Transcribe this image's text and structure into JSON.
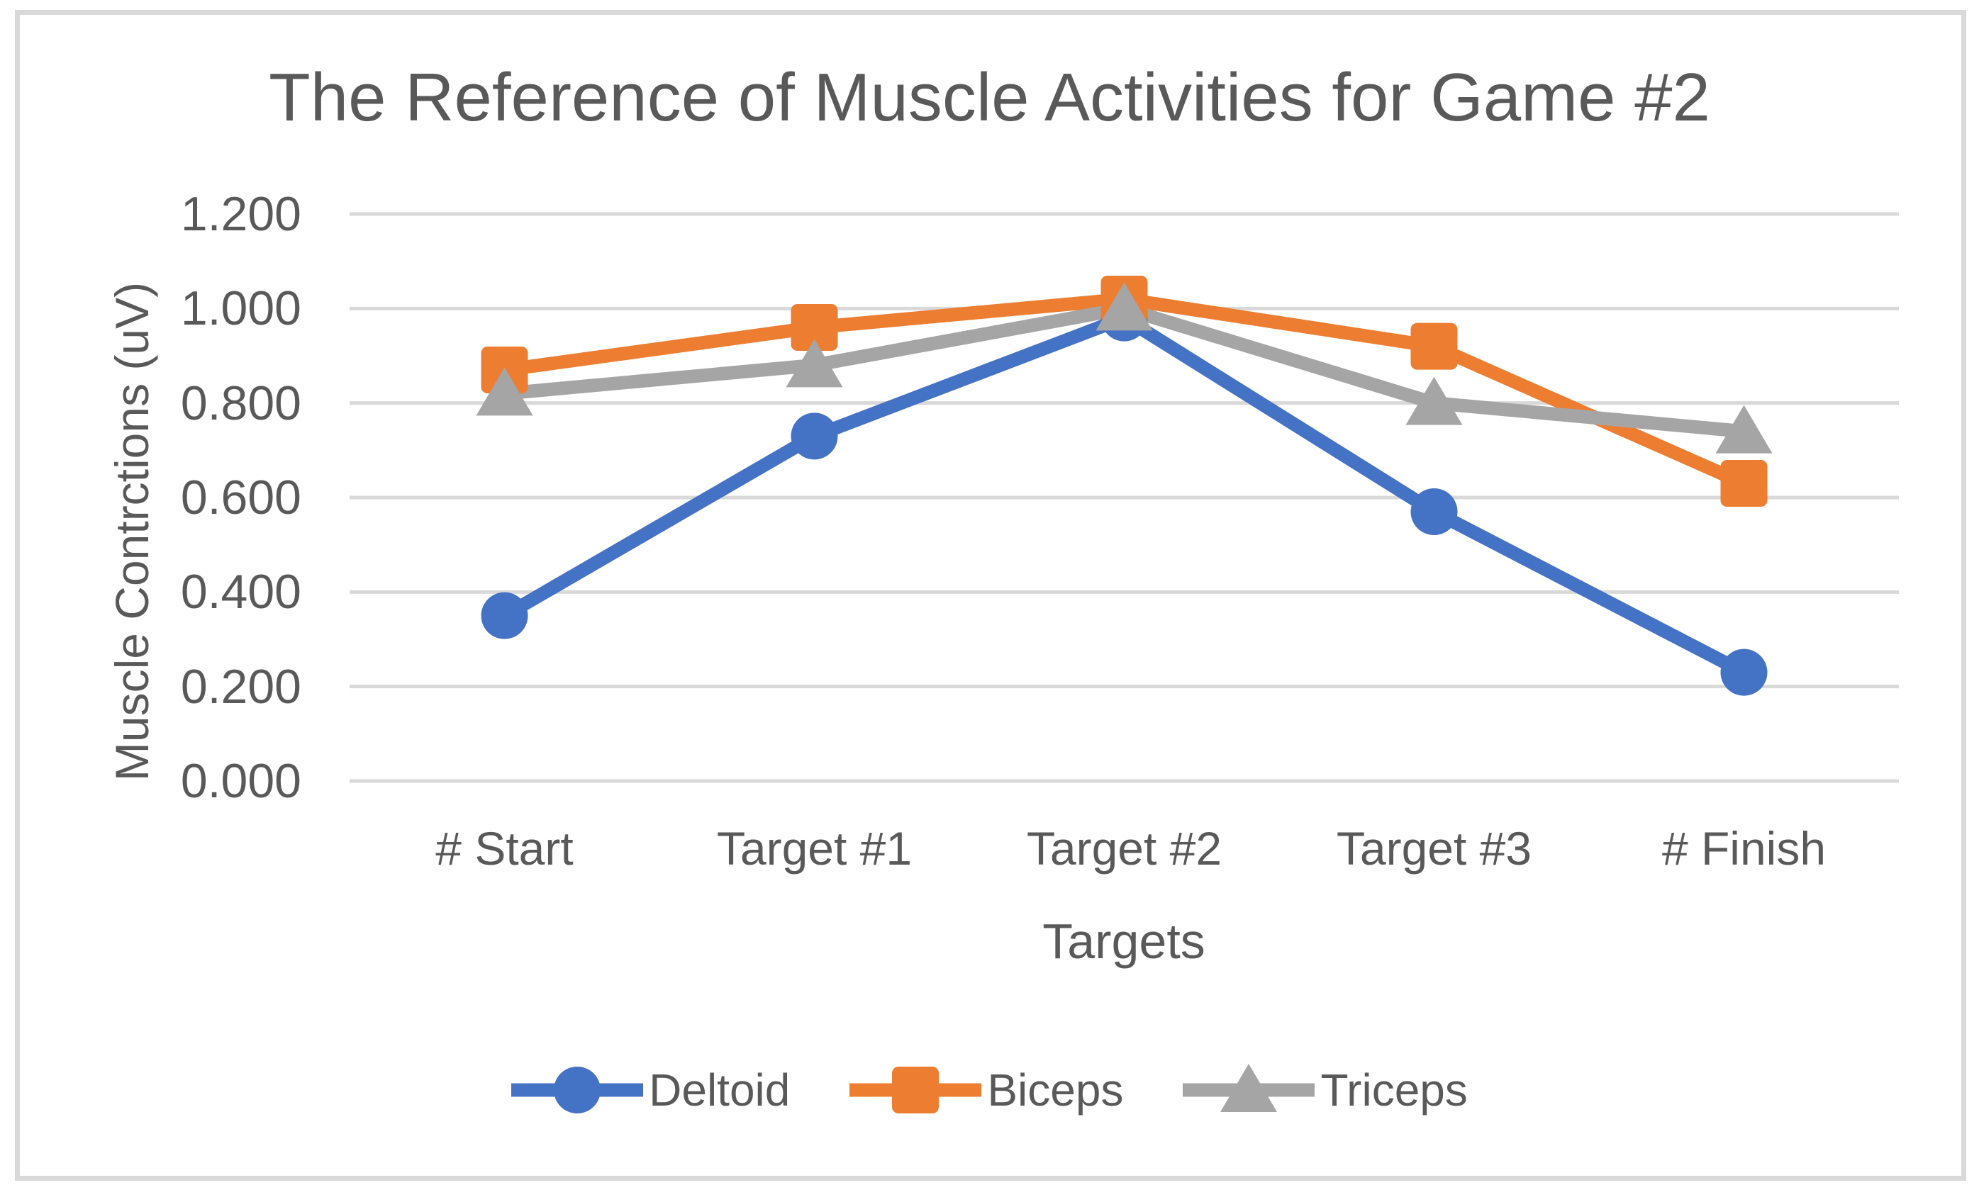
{
  "chart_data": {
    "type": "line",
    "title": "The Reference of Muscle Activities for Game #2",
    "xlabel": "Targets",
    "ylabel": "Muscle Contrctions (uV)",
    "categories": [
      "# Start",
      "Target #1",
      "Target #2",
      "Target #3",
      "# Finish"
    ],
    "series": [
      {
        "name": "Deltoid",
        "marker": "circle",
        "color": "#4472C4",
        "values": [
          0.35,
          0.73,
          0.98,
          0.57,
          0.23
        ]
      },
      {
        "name": "Biceps",
        "marker": "square",
        "color": "#ED7D31",
        "values": [
          0.87,
          0.96,
          1.02,
          0.92,
          0.63
        ]
      },
      {
        "name": "Triceps",
        "marker": "triangle",
        "color": "#A5A5A5",
        "values": [
          0.82,
          0.88,
          1.0,
          0.8,
          0.74
        ]
      }
    ],
    "ylim": [
      0,
      1.2
    ],
    "ytick_values": [
      1.2,
      1.0,
      0.8,
      0.6,
      0.4,
      0.2,
      0.0
    ],
    "ytick_labels": [
      "1.200",
      "1.000",
      "0.800",
      "0.600",
      "0.400",
      "0.200",
      "0.000"
    ],
    "grid": true,
    "legend_position": "bottom"
  },
  "styles": {
    "background": "#FFFFFF",
    "text_color": "#595959",
    "grid_color": "#D9D9D9",
    "border_color": "#D9D9D9"
  }
}
